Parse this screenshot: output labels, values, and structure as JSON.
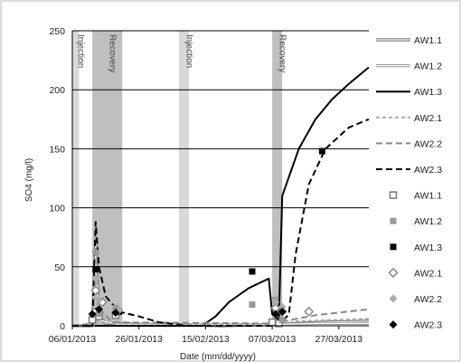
{
  "chart_data": {
    "type": "line",
    "xlabel": "Date (mm/dd/yyyy)",
    "ylabel": "SO4 (mg/l)",
    "ylim": [
      0,
      250
    ],
    "yticks": [
      0,
      50,
      100,
      150,
      200,
      250
    ],
    "xlim": [
      "2013-01-06",
      "2013-04-05"
    ],
    "xticks": [
      {
        "date": "2013-01-06",
        "label": "06/01/2013"
      },
      {
        "date": "2013-01-26",
        "label": "26/01/2013"
      },
      {
        "date": "2013-02-15",
        "label": "15/02/2013"
      },
      {
        "date": "2013-03-07",
        "label": "07/03/2013"
      },
      {
        "date": "2013-03-27",
        "label": "27/03/2013"
      }
    ],
    "grid": "horizontal",
    "legend_position": "right",
    "bands": [
      {
        "label": "Injection",
        "start": "2013-01-06",
        "end": "2013-01-08",
        "color": "#d9d9d9"
      },
      {
        "label": "Recovery",
        "start": "2013-01-12",
        "end": "2013-01-21",
        "color": "#bfbfbf"
      },
      {
        "label": "Injection",
        "start": "2013-02-07",
        "end": "2013-02-10",
        "color": "#d9d9d9"
      },
      {
        "label": "Recovery",
        "start": "2013-03-07",
        "end": "2013-03-10",
        "color": "#bfbfbf"
      }
    ],
    "series": [
      {
        "name": "AW1.1",
        "kind": "line",
        "style": "double",
        "color": "#666666",
        "points": [
          [
            "2013-01-06",
            0
          ],
          [
            "2013-01-12",
            0
          ],
          [
            "2013-01-13",
            70
          ],
          [
            "2013-01-14",
            8
          ],
          [
            "2013-01-16",
            2
          ],
          [
            "2013-02-20",
            0
          ],
          [
            "2013-03-07",
            1
          ],
          [
            "2013-03-21",
            3
          ],
          [
            "2013-04-05",
            4
          ]
        ]
      },
      {
        "name": "AW1.2",
        "kind": "line",
        "style": "double",
        "color": "#999999",
        "points": [
          [
            "2013-01-06",
            0
          ],
          [
            "2013-01-12",
            0
          ],
          [
            "2013-01-13",
            60
          ],
          [
            "2013-01-14",
            5
          ],
          [
            "2013-01-20",
            1
          ],
          [
            "2013-03-07",
            1
          ],
          [
            "2013-03-21",
            2
          ],
          [
            "2013-04-05",
            2
          ]
        ]
      },
      {
        "name": "AW1.3",
        "kind": "line",
        "style": "solid",
        "color": "#000000",
        "points": [
          [
            "2013-01-06",
            0
          ],
          [
            "2013-02-10",
            0
          ],
          [
            "2013-02-14",
            0
          ],
          [
            "2013-02-18",
            8
          ],
          [
            "2013-02-22",
            20
          ],
          [
            "2013-02-28",
            32
          ],
          [
            "2013-03-06",
            40
          ],
          [
            "2013-03-07",
            10
          ],
          [
            "2013-03-09",
            5
          ],
          [
            "2013-03-10",
            110
          ],
          [
            "2013-03-15",
            150
          ],
          [
            "2013-03-20",
            175
          ],
          [
            "2013-03-25",
            192
          ],
          [
            "2013-03-30",
            205
          ],
          [
            "2013-04-05",
            219
          ]
        ]
      },
      {
        "name": "AW2.1",
        "kind": "line",
        "style": "dashed-light",
        "color": "#aaaaaa",
        "points": [
          [
            "2013-01-06",
            0
          ],
          [
            "2013-01-13",
            0
          ],
          [
            "2013-01-14",
            20
          ],
          [
            "2013-01-16",
            2
          ],
          [
            "2013-03-07",
            1
          ],
          [
            "2013-03-15",
            4
          ],
          [
            "2013-04-05",
            6
          ]
        ]
      },
      {
        "name": "AW2.2",
        "kind": "line",
        "style": "dashed",
        "color": "#888888",
        "points": [
          [
            "2013-01-06",
            0
          ],
          [
            "2013-01-12",
            2
          ],
          [
            "2013-01-13",
            80
          ],
          [
            "2013-01-14",
            15
          ],
          [
            "2013-01-18",
            3
          ],
          [
            "2013-03-07",
            2
          ],
          [
            "2013-03-20",
            9
          ],
          [
            "2013-04-05",
            14
          ]
        ]
      },
      {
        "name": "AW2.3",
        "kind": "line",
        "style": "dashed",
        "color": "#000000",
        "points": [
          [
            "2013-01-06",
            0
          ],
          [
            "2013-01-12",
            0
          ],
          [
            "2013-01-13",
            88
          ],
          [
            "2013-01-14",
            50
          ],
          [
            "2013-01-16",
            25
          ],
          [
            "2013-01-20",
            12
          ],
          [
            "2013-01-26",
            8
          ],
          [
            "2013-02-01",
            3
          ],
          [
            "2013-02-10",
            0
          ],
          [
            "2013-03-09",
            0
          ],
          [
            "2013-03-12",
            10
          ],
          [
            "2013-03-14",
            60
          ],
          [
            "2013-03-18",
            120
          ],
          [
            "2013-03-23",
            150
          ],
          [
            "2013-03-30",
            168
          ],
          [
            "2013-04-05",
            175
          ]
        ]
      },
      {
        "name": "AW1.1",
        "kind": "marker",
        "marker": "hollow-square",
        "color": "#777777",
        "points": [
          [
            "2013-01-12",
            5
          ],
          [
            "2013-01-13",
            12
          ],
          [
            "2013-01-14",
            8
          ],
          [
            "2013-01-19",
            9
          ],
          [
            "2013-03-07",
            3
          ],
          [
            "2013-03-09",
            2
          ]
        ]
      },
      {
        "name": "AW1.2",
        "kind": "marker",
        "marker": "square",
        "color": "#999999",
        "points": [
          [
            "2013-01-13",
            62
          ],
          [
            "2013-01-14",
            10
          ],
          [
            "2013-01-19",
            15
          ],
          [
            "2013-03-01",
            18
          ],
          [
            "2013-03-08",
            22
          ],
          [
            "2013-03-10",
            5
          ]
        ]
      },
      {
        "name": "AW1.3",
        "kind": "marker",
        "marker": "square",
        "color": "#000000",
        "points": [
          [
            "2013-01-13",
            48
          ],
          [
            "2013-01-20",
            12
          ],
          [
            "2013-03-01",
            46
          ],
          [
            "2013-03-09",
            15
          ],
          [
            "2013-03-22",
            148
          ]
        ]
      },
      {
        "name": "AW2.1",
        "kind": "marker",
        "marker": "hollow-diamond",
        "color": "#888888",
        "points": [
          [
            "2013-01-13",
            30
          ],
          [
            "2013-01-15",
            20
          ],
          [
            "2013-03-08",
            15
          ],
          [
            "2013-03-10",
            12
          ],
          [
            "2013-03-18",
            12
          ]
        ]
      },
      {
        "name": "AW2.2",
        "kind": "marker",
        "marker": "diamond",
        "color": "#aaaaaa",
        "points": [
          [
            "2013-01-13",
            40
          ],
          [
            "2013-01-14",
            22
          ],
          [
            "2013-01-20",
            13
          ],
          [
            "2013-03-08",
            20
          ],
          [
            "2013-03-10",
            16
          ]
        ]
      },
      {
        "name": "AW2.3",
        "kind": "marker",
        "marker": "diamond",
        "color": "#000000",
        "points": [
          [
            "2013-01-12",
            10
          ],
          [
            "2013-01-14",
            14
          ],
          [
            "2013-01-19",
            11
          ],
          [
            "2013-03-08",
            10
          ],
          [
            "2013-03-10",
            12
          ]
        ]
      }
    ]
  }
}
